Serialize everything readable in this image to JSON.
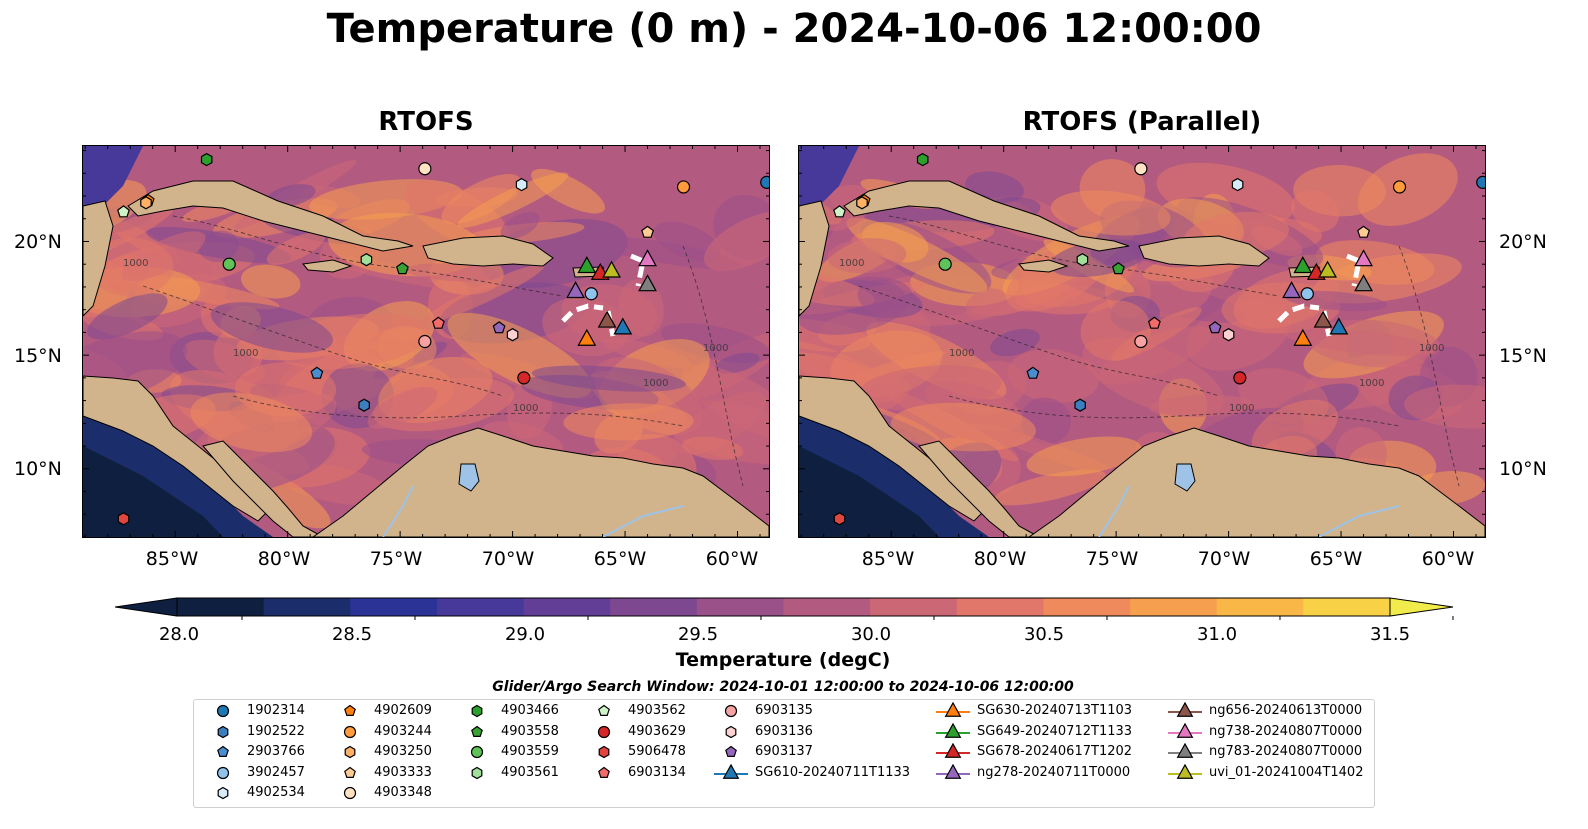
{
  "title": "Temperature (0 m) - 2024-10-06 12:00:00",
  "panels": [
    {
      "title": "RTOFS"
    },
    {
      "title": "RTOFS (Parallel)"
    }
  ],
  "lat_labels": [
    "20°N",
    "15°N",
    "10°N"
  ],
  "lon_labels": [
    "85°W",
    "80°W",
    "75°W",
    "70°W",
    "65°W",
    "60°W"
  ],
  "colorbar": {
    "label": "Temperature (degC)",
    "ticks": [
      "28.0",
      "28.5",
      "29.0",
      "29.5",
      "30.0",
      "30.5",
      "31.0",
      "31.5"
    ],
    "min": 28.0,
    "max": 31.5,
    "colors": [
      "#0e1f3f",
      "#1b2d6b",
      "#2b3397",
      "#463999",
      "#623e97",
      "#7e4891",
      "#9a518a",
      "#b35a81",
      "#cc6776",
      "#e1776a",
      "#ee8a5c",
      "#f59f4f",
      "#f9b747",
      "#f8d147",
      "#f2eb4c"
    ]
  },
  "contour_label": "1000",
  "legend": {
    "title": "Glider/Argo Search Window: 2024-10-01 12:00:00 to 2024-10-06 12:00:00",
    "items": [
      {
        "label": "1902314",
        "shape": "circle",
        "color": "#1f77b4"
      },
      {
        "label": "1902522",
        "shape": "hexagon",
        "color": "#3c7fc0"
      },
      {
        "label": "2903766",
        "shape": "pentagon",
        "color": "#4b8ed0"
      },
      {
        "label": "3902457",
        "shape": "circle",
        "color": "#8fc3ec"
      },
      {
        "label": "4902534",
        "shape": "hexagon",
        "color": "#d6ecfa"
      },
      {
        "label": "4902609",
        "shape": "pentagon",
        "color": "#ff7f0e"
      },
      {
        "label": "4903244",
        "shape": "circle",
        "color": "#ff9b3d"
      },
      {
        "label": "4903250",
        "shape": "hexagon",
        "color": "#ffb064"
      },
      {
        "label": "4903333",
        "shape": "pentagon",
        "color": "#ffcb94"
      },
      {
        "label": "4903348",
        "shape": "circle",
        "color": "#ffe2c4"
      },
      {
        "label": "4903466",
        "shape": "hexagon",
        "color": "#2ca02c"
      },
      {
        "label": "4903558",
        "shape": "pentagon",
        "color": "#37a335"
      },
      {
        "label": "4903559",
        "shape": "circle",
        "color": "#5fc35a"
      },
      {
        "label": "4903561",
        "shape": "hexagon",
        "color": "#a0e09a"
      },
      {
        "label": "4903562",
        "shape": "pentagon",
        "color": "#cff3c9"
      },
      {
        "label": "4903629",
        "shape": "circle",
        "color": "#d62728"
      },
      {
        "label": "5906478",
        "shape": "hexagon",
        "color": "#e0453f"
      },
      {
        "label": "6903134",
        "shape": "pentagon",
        "color": "#f26b6b"
      },
      {
        "label": "6903135",
        "shape": "circle",
        "color": "#f7a3a3"
      },
      {
        "label": "6903136",
        "shape": "hexagon",
        "color": "#fbd1d1"
      },
      {
        "label": "6903137",
        "shape": "pentagon",
        "color": "#9467bd"
      },
      {
        "label": "SG610-20240711T1133",
        "shape": "triangle",
        "color": "#1f77b4"
      },
      {
        "label": "SG630-20240713T1103",
        "shape": "triangle",
        "color": "#ff7f0e"
      },
      {
        "label": "SG649-20240712T1133",
        "shape": "triangle",
        "color": "#2ca02c"
      },
      {
        "label": "SG678-20240617T1202",
        "shape": "triangle",
        "color": "#d62728"
      },
      {
        "label": "ng278-20240711T0000",
        "shape": "triangle",
        "color": "#9467bd"
      },
      {
        "label": "ng656-20240613T0000",
        "shape": "triangle",
        "color": "#8c564b"
      },
      {
        "label": "ng738-20240807T0000",
        "shape": "triangle",
        "color": "#e377c2"
      },
      {
        "label": "ng783-20240807T0000",
        "shape": "triangle",
        "color": "#7f7f7f"
      },
      {
        "label": "uvi_01-20241004T1402",
        "shape": "triangle",
        "color": "#bcbd22"
      }
    ]
  },
  "markers": [
    {
      "id": "1902314",
      "shape": "circle",
      "color": "#1f77b4",
      "lon": -58.7,
      "lat": 22.6
    },
    {
      "id": "1902522",
      "shape": "hexagon",
      "color": "#3c7fc0",
      "lon": -76.6,
      "lat": 12.8
    },
    {
      "id": "2903766",
      "shape": "pentagon",
      "color": "#4b8ed0",
      "lon": -78.7,
      "lat": 14.2
    },
    {
      "id": "3902457",
      "shape": "circle",
      "color": "#8fc3ec",
      "lon": -66.5,
      "lat": 17.7
    },
    {
      "id": "4902534",
      "shape": "hexagon",
      "color": "#d6ecfa",
      "lon": -69.6,
      "lat": 22.5
    },
    {
      "id": "4902609",
      "shape": "pentagon",
      "color": "#ff7f0e",
      "lon": -86.2,
      "lat": 21.8
    },
    {
      "id": "4903244",
      "shape": "circle",
      "color": "#ff9b3d",
      "lon": -62.4,
      "lat": 22.4
    },
    {
      "id": "4903250",
      "shape": "hexagon",
      "color": "#ffb064",
      "lon": -86.3,
      "lat": 21.7
    },
    {
      "id": "4903333",
      "shape": "pentagon",
      "color": "#ffcb94",
      "lon": -64.0,
      "lat": 20.4
    },
    {
      "id": "4903348",
      "shape": "circle",
      "color": "#ffe2c4",
      "lon": -73.9,
      "lat": 23.2
    },
    {
      "id": "4903466",
      "shape": "hexagon",
      "color": "#2ca02c",
      "lon": -83.6,
      "lat": 23.6
    },
    {
      "id": "4903558",
      "shape": "pentagon",
      "color": "#37a335",
      "lon": -74.9,
      "lat": 18.8
    },
    {
      "id": "4903559",
      "shape": "circle",
      "color": "#5fc35a",
      "lon": -82.6,
      "lat": 19.0
    },
    {
      "id": "4903561",
      "shape": "hexagon",
      "color": "#a0e09a",
      "lon": -76.5,
      "lat": 19.2
    },
    {
      "id": "4903562",
      "shape": "pentagon",
      "color": "#cff3c9",
      "lon": -87.3,
      "lat": 21.3
    },
    {
      "id": "4903629",
      "shape": "circle",
      "color": "#d62728",
      "lon": -69.5,
      "lat": 14.0
    },
    {
      "id": "5906478",
      "shape": "hexagon",
      "color": "#e0453f",
      "lon": -87.3,
      "lat": 7.8
    },
    {
      "id": "6903134",
      "shape": "pentagon",
      "color": "#f26b6b",
      "lon": -73.3,
      "lat": 16.4
    },
    {
      "id": "6903135",
      "shape": "circle",
      "color": "#f7a3a3",
      "lon": -73.9,
      "lat": 15.6
    },
    {
      "id": "6903136",
      "shape": "hexagon",
      "color": "#fbd1d1",
      "lon": -70.0,
      "lat": 15.9
    },
    {
      "id": "6903137",
      "shape": "pentagon",
      "color": "#9467bd",
      "lon": -70.6,
      "lat": 16.2
    },
    {
      "id": "SG610-20240711T1133",
      "shape": "triangle",
      "color": "#1f77b4",
      "lon": -65.1,
      "lat": 16.2
    },
    {
      "id": "SG630-20240713T1103",
      "shape": "triangle",
      "color": "#ff7f0e",
      "lon": -66.7,
      "lat": 15.7
    },
    {
      "id": "SG649-20240712T1133",
      "shape": "triangle",
      "color": "#2ca02c",
      "lon": -66.7,
      "lat": 18.9
    },
    {
      "id": "SG678-20240617T1202",
      "shape": "triangle",
      "color": "#d62728",
      "lon": -66.1,
      "lat": 18.6
    },
    {
      "id": "ng278-20240711T0000",
      "shape": "triangle",
      "color": "#9467bd",
      "lon": -67.2,
      "lat": 17.8
    },
    {
      "id": "ng656-20240613T0000",
      "shape": "triangle",
      "color": "#8c564b",
      "lon": -65.8,
      "lat": 16.5
    },
    {
      "id": "ng738-20240807T0000",
      "shape": "triangle",
      "color": "#e377c2",
      "lon": -64.0,
      "lat": 19.2
    },
    {
      "id": "ng783-20240807T0000",
      "shape": "triangle",
      "color": "#7f7f7f",
      "lon": -64.0,
      "lat": 18.1
    },
    {
      "id": "uvi_01-20241004T1402",
      "shape": "triangle",
      "color": "#bcbd22",
      "lon": -65.6,
      "lat": 18.7
    }
  ]
}
